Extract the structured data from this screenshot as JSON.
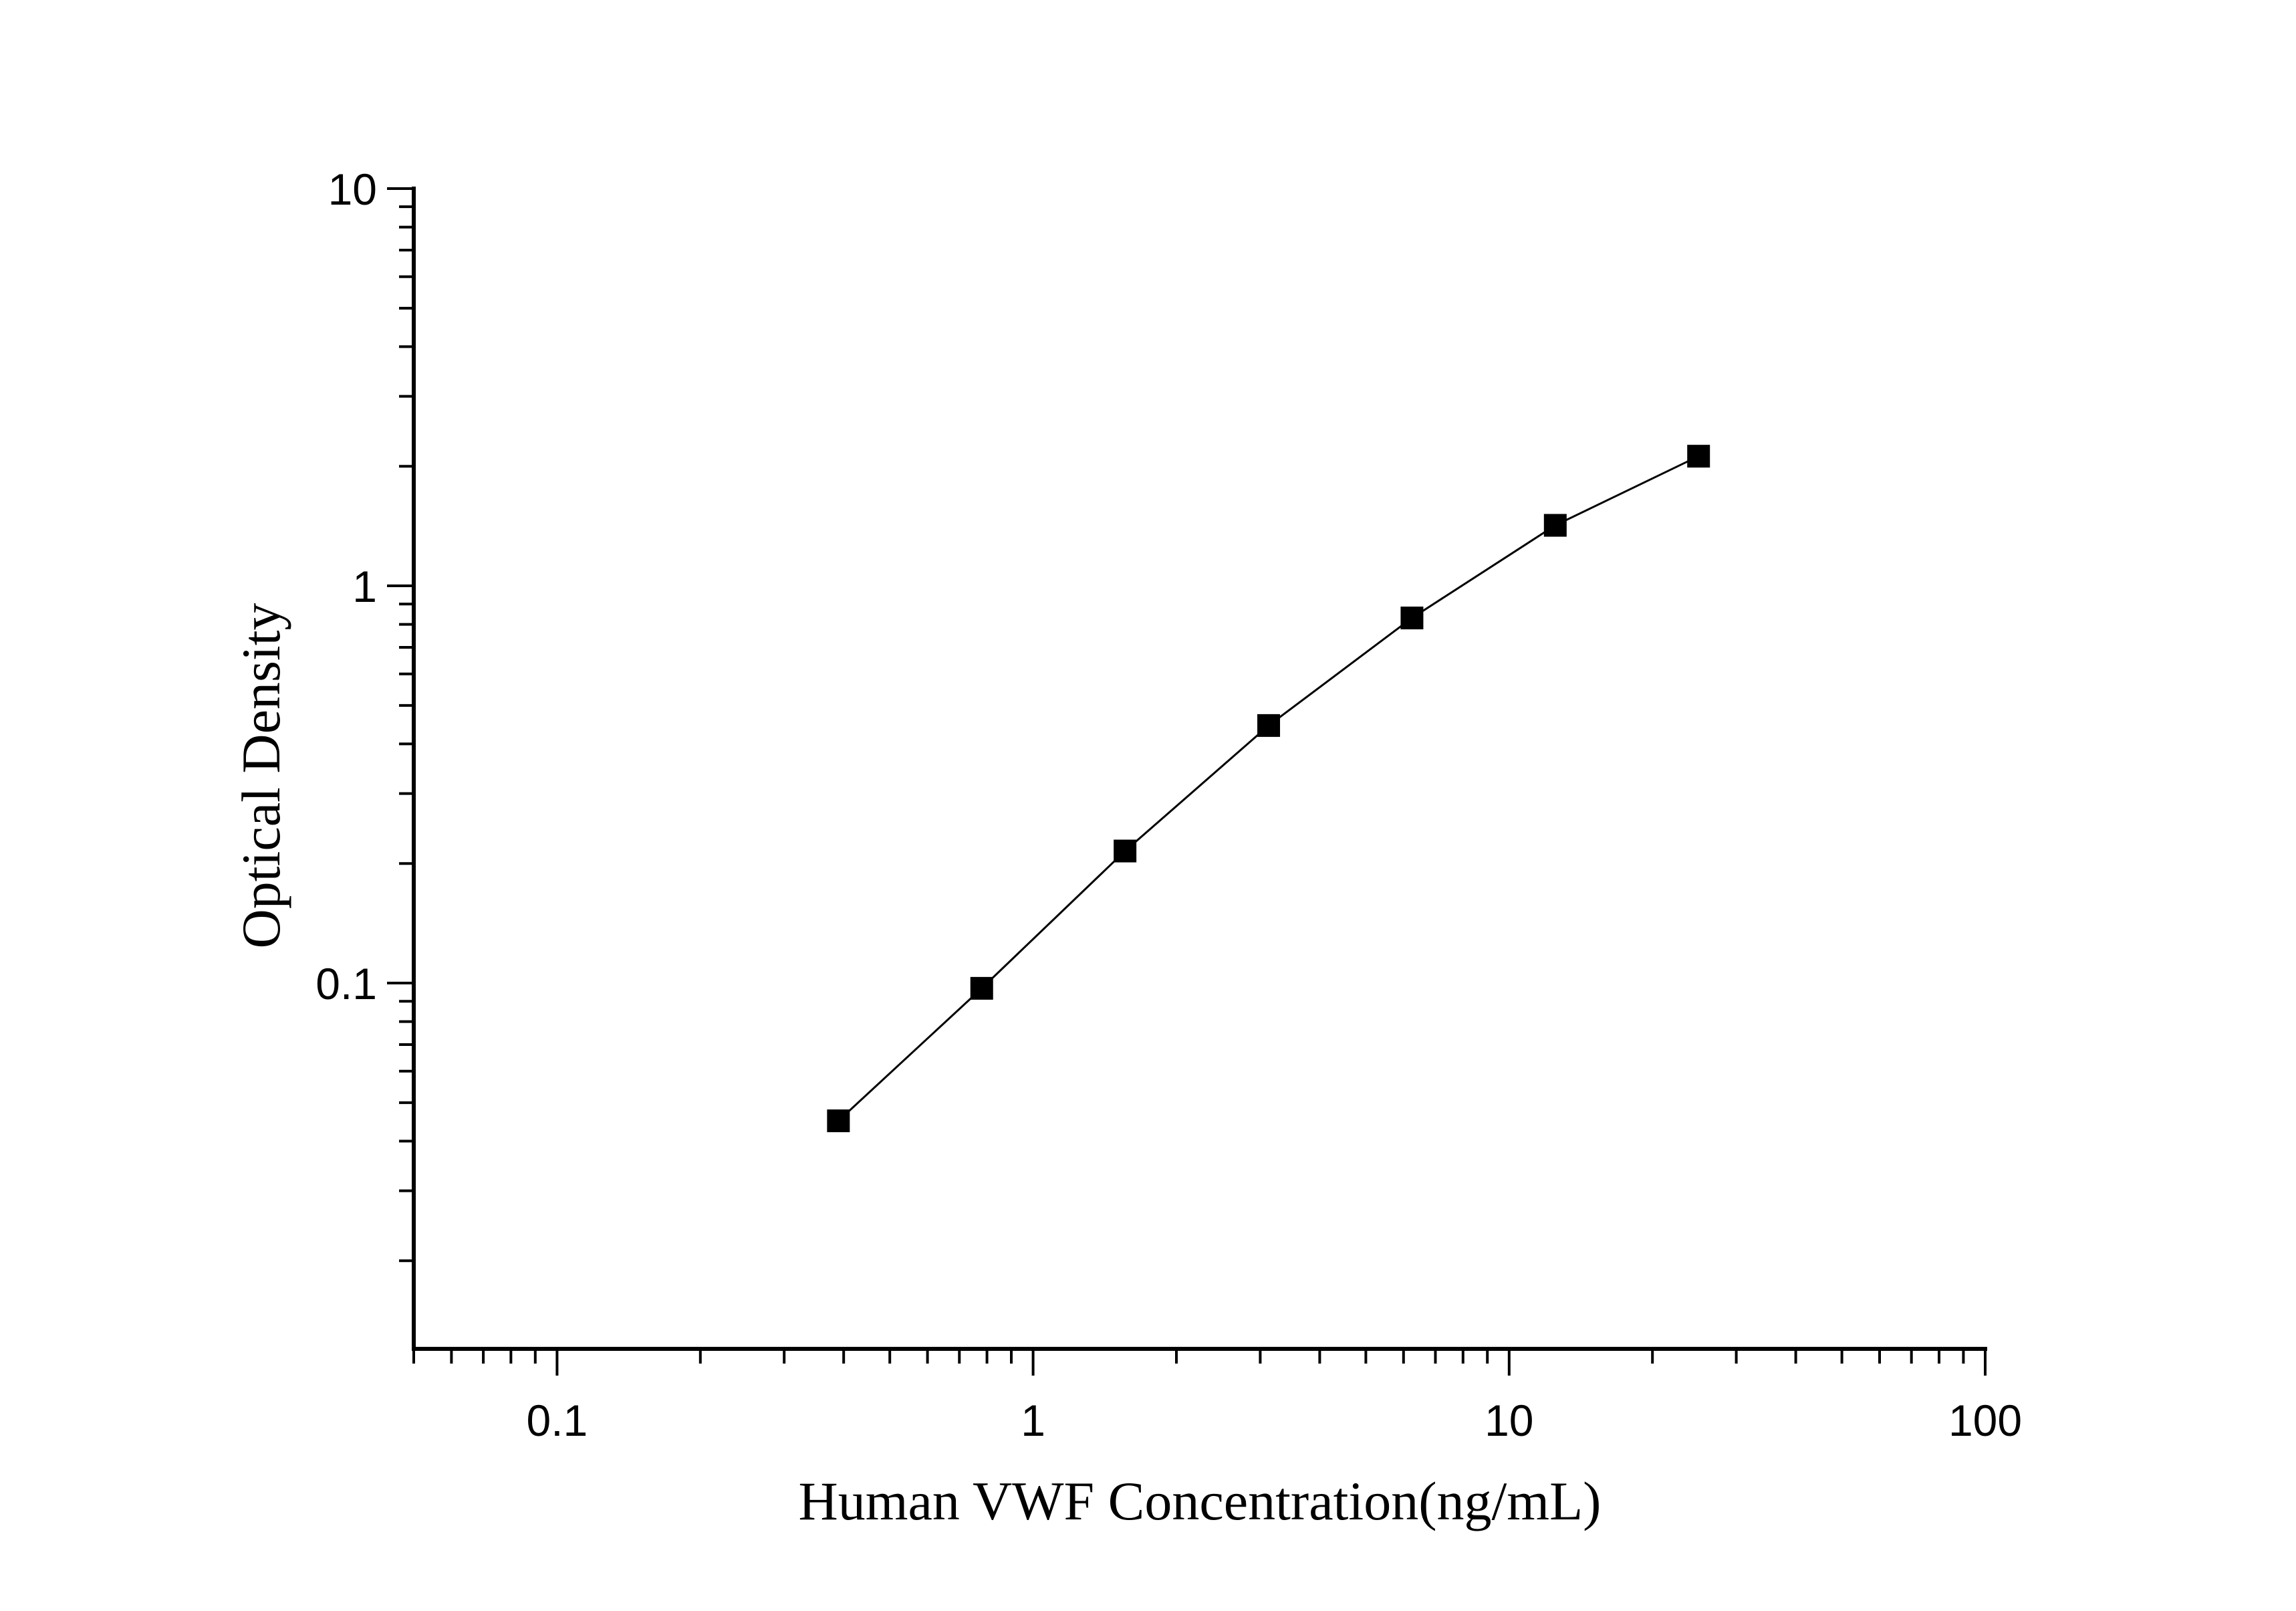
{
  "chart_data": {
    "type": "line",
    "title": "",
    "xlabel": "Human VWF Concentration(ng/mL)",
    "ylabel": "Optical Density",
    "x_scale": "log",
    "y_scale": "log",
    "xlim": [
      0.05,
      100
    ],
    "ylim": [
      0.012,
      10
    ],
    "x_ticks": [
      "0.1",
      "1",
      "10",
      "100"
    ],
    "y_ticks": [
      "0.1",
      "1",
      "10"
    ],
    "grid": false,
    "marker": "square",
    "colors": {
      "line": "#000000",
      "marker": "#000000",
      "axis": "#000000"
    },
    "series": [
      {
        "x": [
          0.39,
          0.78,
          1.56,
          3.125,
          6.25,
          12.5,
          25
        ],
        "y": [
          0.045,
          0.097,
          0.215,
          0.445,
          0.83,
          1.42,
          2.12
        ]
      }
    ]
  }
}
